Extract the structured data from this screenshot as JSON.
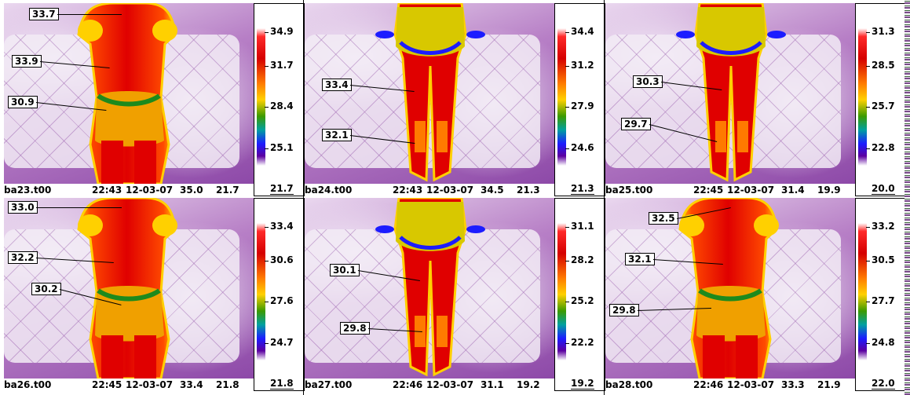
{
  "panels": [
    {
      "view": "back-torso",
      "filename": "ba23.t00",
      "time": "22:43",
      "date": "12-03-07",
      "max_reading": "35.0",
      "min_reading": "21.7",
      "scale": [
        "34.9",
        "31.7",
        "28.4",
        "25.1"
      ],
      "scale_min": "21.7",
      "labels": [
        "33.7",
        "33.9",
        "30.9"
      ]
    },
    {
      "view": "back-legs",
      "filename": "ba24.t00",
      "time": "22:43",
      "date": "12-03-07",
      "max_reading": "34.5",
      "min_reading": "21.3",
      "scale": [
        "34.4",
        "31.2",
        "27.9",
        "24.6"
      ],
      "scale_min": "21.3",
      "labels": [
        "33.4",
        "32.1"
      ]
    },
    {
      "view": "back-legs",
      "filename": "ba25.t00",
      "time": "22:45",
      "date": "12-03-07",
      "max_reading": "31.4",
      "min_reading": "19.9",
      "scale": [
        "31.3",
        "28.5",
        "25.7",
        "22.8"
      ],
      "scale_min": "20.0",
      "labels": [
        "30.3",
        "29.7"
      ]
    },
    {
      "view": "back-torso",
      "filename": "ba26.t00",
      "time": "22:45",
      "date": "12-03-07",
      "max_reading": "33.4",
      "min_reading": "21.8",
      "scale": [
        "33.4",
        "30.6",
        "27.6",
        "24.7"
      ],
      "scale_min": "21.8",
      "labels": [
        "33.0",
        "32.2",
        "30.2"
      ]
    },
    {
      "view": "back-legs",
      "filename": "ba27.t00",
      "time": "22:46",
      "date": "12-03-07",
      "max_reading": "31.1",
      "min_reading": "19.2",
      "scale": [
        "31.1",
        "28.2",
        "25.2",
        "22.2"
      ],
      "scale_min": "19.2",
      "labels": [
        "30.1",
        "29.8"
      ]
    },
    {
      "view": "back-torso",
      "filename": "ba28.t00",
      "time": "22:46",
      "date": "12-03-07",
      "max_reading": "33.3",
      "min_reading": "21.9",
      "scale": [
        "33.2",
        "30.5",
        "27.7",
        "24.8"
      ],
      "scale_min": "22.0",
      "labels": [
        "32.5",
        "32.1",
        "29.8"
      ]
    }
  ]
}
